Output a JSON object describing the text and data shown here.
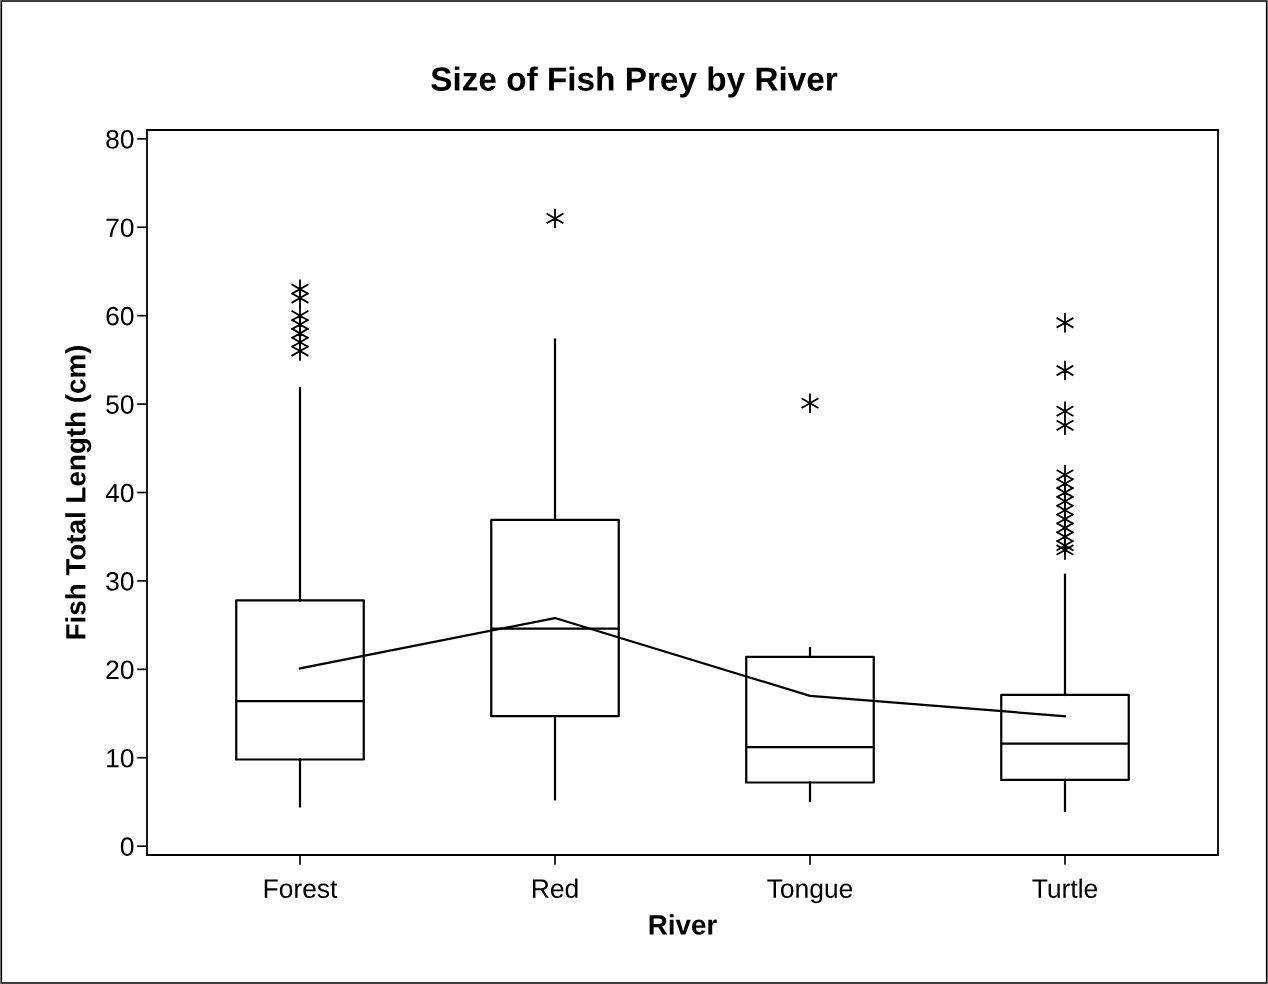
{
  "chart_data": {
    "type": "box",
    "title": "Size of Fish Prey by River",
    "xlabel": "River",
    "ylabel": "Fish Total Length (cm)",
    "categories": [
      "Forest",
      "Red",
      "Tongue",
      "Turtle"
    ],
    "boxes": [
      {
        "low": 4.5,
        "q1": 9.8,
        "median": 16.4,
        "q3": 27.8,
        "high": 51.8,
        "outliers": [
          63,
          62,
          60,
          59,
          58,
          57,
          56
        ]
      },
      {
        "low": 5.3,
        "q1": 14.7,
        "median": 24.6,
        "q3": 36.9,
        "high": 57.3,
        "outliers": [
          71
        ]
      },
      {
        "low": 5.1,
        "q1": 7.2,
        "median": 11.2,
        "q3": 21.4,
        "high": 22.4,
        "outliers": [
          50.1
        ]
      },
      {
        "low": 4.0,
        "q1": 7.5,
        "median": 11.6,
        "q3": 17.1,
        "high": 30.7,
        "outliers": [
          59.2,
          53.8,
          49.2,
          47.6,
          42,
          41,
          40,
          39,
          38,
          37,
          36,
          35,
          34,
          33.5
        ]
      }
    ],
    "series": [
      {
        "type": "line",
        "color": "#000000",
        "values": [
          20.1,
          25.8,
          17.0,
          14.7
        ]
      }
    ],
    "ylim": [
      -1,
      81
    ],
    "yticks": [
      0,
      10,
      20,
      30,
      40,
      50,
      60,
      70,
      80
    ],
    "grid": false,
    "legend": false
  }
}
